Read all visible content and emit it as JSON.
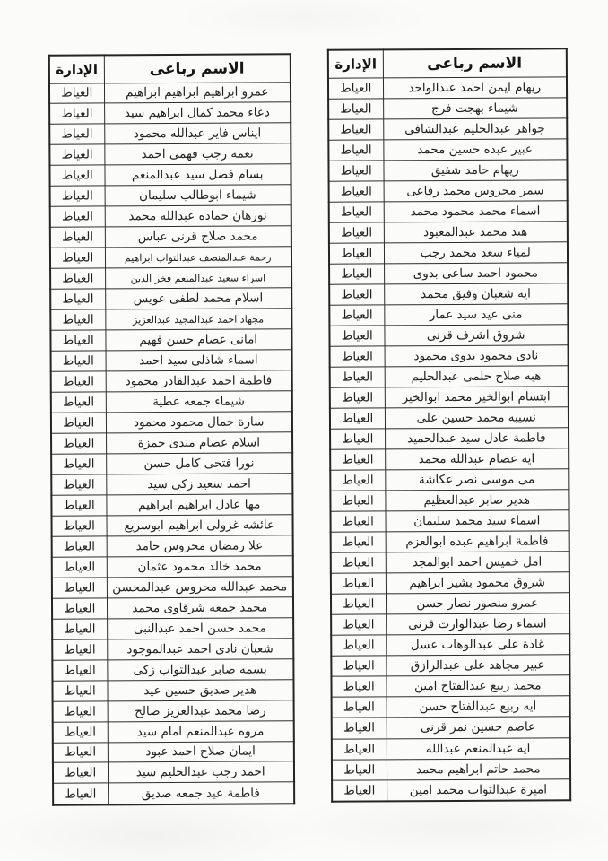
{
  "tables": {
    "right": {
      "headers": {
        "name": "الاسم رباعى",
        "department": "الإدارة"
      },
      "rows": [
        {
          "name": "ريهام ايمن احمد عبدالواحد",
          "department": "العياط"
        },
        {
          "name": "شيماء بهجت فرج",
          "department": "العياط"
        },
        {
          "name": "جواهر عبدالحليم عبدالشافى",
          "department": "العياط"
        },
        {
          "name": "عبير عبده حسين محمد",
          "department": "العياط"
        },
        {
          "name": "ريهام حامد شفيق",
          "department": "العياط"
        },
        {
          "name": "سمر محروس محمد رفاعى",
          "department": "العياط"
        },
        {
          "name": "اسماء محمد محمود محمد",
          "department": "العياط"
        },
        {
          "name": "هند محمد عبدالمعبود",
          "department": "العياط"
        },
        {
          "name": "لمياء سعد محمد رجب",
          "department": "العياط"
        },
        {
          "name": "محمود احمد ساعى بدوى",
          "department": "العياط"
        },
        {
          "name": "ايه شعبان وفيق محمد",
          "department": "العياط"
        },
        {
          "name": "منى عيد سيد عمار",
          "department": "العياط"
        },
        {
          "name": "شروق اشرف قرنى",
          "department": "العياط"
        },
        {
          "name": "نادى محمود بدوى محمود",
          "department": "العياط"
        },
        {
          "name": "هبه صلاح حلمى عبدالحليم",
          "department": "العياط"
        },
        {
          "name": "ابتسام ابوالخير محمد ابوالخير",
          "department": "العياط"
        },
        {
          "name": "نسيبه محمد حسين على",
          "department": "العياط"
        },
        {
          "name": "فاطمة عادل سيد عبدالحميد",
          "department": "العياط"
        },
        {
          "name": "ايه عصام عبدالله محمد",
          "department": "العياط"
        },
        {
          "name": "مى موسى نصر عكاشة",
          "department": "العياط"
        },
        {
          "name": "هدير صابر عبدالعظيم",
          "department": "العياط"
        },
        {
          "name": "اسماء سيد محمد سليمان",
          "department": "العياط"
        },
        {
          "name": "فاطمة ابراهيم عبده ابوالعزم",
          "department": "العياط"
        },
        {
          "name": "امل خميس احمد ابوالمجد",
          "department": "العياط"
        },
        {
          "name": "شروق محمود بشير ابراهيم",
          "department": "العياط"
        },
        {
          "name": "عمرو منصور نصار حسن",
          "department": "العياط"
        },
        {
          "name": "اسماء رضا عبدالوارث قرنى",
          "department": "العياط"
        },
        {
          "name": "غادة على عبدالوهاب عسل",
          "department": "العياط"
        },
        {
          "name": "عبير مجاهد على عبدالرازق",
          "department": "العياط"
        },
        {
          "name": "محمد ربيع عبدالفتاح امين",
          "department": "العياط"
        },
        {
          "name": "ايه ربيع عبدالفتاح حسن",
          "department": "العياط"
        },
        {
          "name": "عاصم حسين نمر قرنى",
          "department": "العياط"
        },
        {
          "name": "ايه عبدالمنعم عبدالله",
          "department": "العياط"
        },
        {
          "name": "محمد حاتم ابراهيم محمد",
          "department": "العياط"
        },
        {
          "name": "اميرة عبدالتواب محمد امين",
          "department": "العياط"
        }
      ]
    },
    "left": {
      "headers": {
        "name": "الاسم رباعى",
        "department": "الإدارة"
      },
      "rows": [
        {
          "name": "عمرو ابراهيم ابراهيم ابراهيم",
          "department": "العياط"
        },
        {
          "name": "دعاء محمد كمال ابراهيم سيد",
          "department": "العياط"
        },
        {
          "name": "ايناس فايز عبدالله محمود",
          "department": "العياط"
        },
        {
          "name": "نعمه رجب فهمى احمد",
          "department": "العياط"
        },
        {
          "name": "بسام فضل سيد عبدالمنعم",
          "department": "العياط"
        },
        {
          "name": "شيماء ابوطالب سليمان",
          "department": "العياط"
        },
        {
          "name": "نورهان حماده عبدالله محمد",
          "department": "العياط"
        },
        {
          "name": "محمد صلاح قرنى عباس",
          "department": "العياط"
        },
        {
          "name": "رحمة عبدالمنصف عبدالتواب ابراهيم",
          "department": "العياط"
        },
        {
          "name": "اسراء سعيد عبدالمنعم فخر الدين",
          "department": "العياط"
        },
        {
          "name": "اسلام محمد لطفى عويس",
          "department": "العياط"
        },
        {
          "name": "مجهاد احمد عبدالمجيد عبدالعزيز",
          "department": "العياط"
        },
        {
          "name": "امانى عصام حسن فهيم",
          "department": "العياط"
        },
        {
          "name": "اسماء شاذلى سيد احمد",
          "department": "العياط"
        },
        {
          "name": "فاطمة احمد عبدالقادر محمود",
          "department": "العياط"
        },
        {
          "name": "شيماء جمعه عطية",
          "department": "العياط"
        },
        {
          "name": "سارة جمال محمود محمود",
          "department": "العياط"
        },
        {
          "name": "اسلام عصام مندى حمزة",
          "department": "العياط"
        },
        {
          "name": "نورا فتحى كامل حسن",
          "department": "العياط"
        },
        {
          "name": "احمد سعيد زكى سيد",
          "department": "العياط"
        },
        {
          "name": "مها عادل ابراهيم ابراهيم",
          "department": "العياط"
        },
        {
          "name": "عائشه غزولى ابراهيم ابوسريع",
          "department": "العياط"
        },
        {
          "name": "علا رمضان محروس حامد",
          "department": "العياط"
        },
        {
          "name": "محمد خالد محمود عثمان",
          "department": "العياط"
        },
        {
          "name": "محمد عبدالله محروس عبدالمحسن",
          "department": "العياط"
        },
        {
          "name": "محمد جمعه شرقاوى محمد",
          "department": "العياط"
        },
        {
          "name": "محمد حسن احمد عبدالنبى",
          "department": "العياط"
        },
        {
          "name": "شعبان نادى احمد عبدالموجود",
          "department": "العياط"
        },
        {
          "name": "بسمه صابر عبدالتواب زكى",
          "department": "العياط"
        },
        {
          "name": "هدير صديق حسين عيد",
          "department": "العياط"
        },
        {
          "name": "رضا محمد عبدالعزيز صالح",
          "department": "العياط"
        },
        {
          "name": "مروه عبدالمنعم امام سيد",
          "department": "العياط"
        },
        {
          "name": "ايمان صلاح احمد عبود",
          "department": "العياط"
        },
        {
          "name": "احمد رجب عبدالحليم سيد",
          "department": "العياط"
        },
        {
          "name": "فاطمة عيد جمعه صديق",
          "department": "العياط"
        }
      ]
    }
  }
}
